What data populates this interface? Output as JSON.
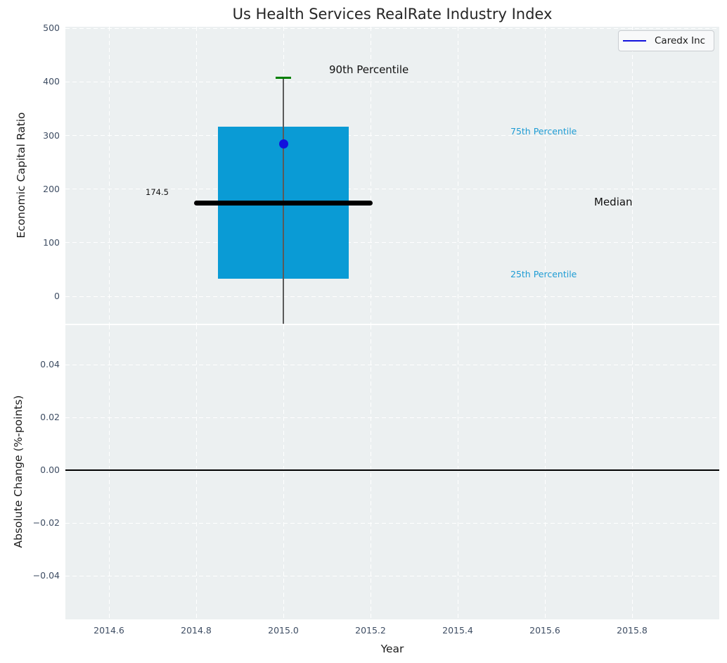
{
  "colors": {
    "figure_bg": "#ffffff",
    "axes_bg": "#ecf0f1",
    "grid": "#ffffff",
    "box": "#0a9bd5",
    "median": "#000000",
    "whisker": "#5a5a5a",
    "cap": "#008000",
    "marker": "#1212dd",
    "tick_label": "#3e4d63",
    "axis_label": "#1c1c1c",
    "title": "#252525",
    "annotation_dark": "#111111",
    "annotation_blue": "#1f9cd4",
    "legend_bg": "#f8f9fa",
    "legend_border": "#c9cdd1",
    "zero_line": "#000000"
  },
  "x_axis": {
    "xlim": [
      2014.5,
      2016.0
    ],
    "xtick_values": [
      2014.6,
      2014.8,
      2015.0,
      2015.2,
      2015.4,
      2015.6,
      2015.8
    ],
    "xtick_labels": [
      "2014.6",
      "2014.8",
      "2015.0",
      "2015.2",
      "2015.4",
      "2015.6",
      "2015.8"
    ]
  },
  "chart_data": [
    {
      "type": "boxplot",
      "title": "Us Health Services RealRate Industry Index",
      "ylabel": "Economic Capital Ratio",
      "ylim": [
        -51,
        503
      ],
      "yticks": [
        0,
        100,
        200,
        300,
        400,
        500
      ],
      "grid": true,
      "legend": {
        "position": "upper right",
        "entries": [
          {
            "label": "Caredx Inc",
            "color": "#1212dd"
          }
        ]
      },
      "box": {
        "x": 2015.0,
        "p25": 33,
        "median": 174.5,
        "p75": 317,
        "p90": 408,
        "box_halfwidth": 0.15,
        "median_halfwidth": 0.205,
        "cap_halfwidth": 0.017,
        "whisker_extends_below_axis": true
      },
      "company_point": {
        "label": "Caredx Inc",
        "x": 2015.0,
        "y": 285
      },
      "annotations": [
        {
          "id": "p90",
          "text": "90th Percentile"
        },
        {
          "id": "p75",
          "text": "75th Percentile"
        },
        {
          "id": "median",
          "text": "Median"
        },
        {
          "id": "p25",
          "text": "25th Percentile"
        },
        {
          "id": "median_value",
          "text": "174.5"
        }
      ]
    },
    {
      "type": "line",
      "ylabel": "Absolute Change (%-points)",
      "xlabel": "Year",
      "ylim": [
        -0.0565,
        0.055
      ],
      "ytick_values": [
        0.04,
        0.02,
        0.0,
        -0.02,
        -0.04
      ],
      "ytick_labels": [
        "0.04",
        "0.02",
        "0.00",
        "−0.02",
        "−0.04"
      ],
      "grid": true,
      "zero_line": 0.0,
      "series": []
    }
  ]
}
